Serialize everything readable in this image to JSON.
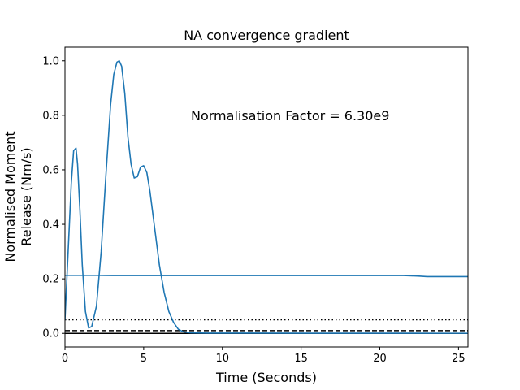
{
  "chart_data": {
    "type": "line",
    "title": "NA convergence gradient",
    "xlabel": "Time (Seconds)",
    "ylabel_line1": "Normalised Moment",
    "ylabel_line2": "Release (Nm/s)",
    "xlim": [
      0,
      25.6
    ],
    "ylim": [
      -0.05,
      1.05
    ],
    "xticks": [
      0,
      5,
      10,
      15,
      20,
      25
    ],
    "yticks": [
      0.0,
      0.2,
      0.4,
      0.6,
      0.8,
      1.0
    ],
    "ytick_labels": [
      "0.0",
      "0.2",
      "0.4",
      "0.6",
      "0.8",
      "1.0"
    ],
    "grid": false,
    "annotation": {
      "text": "Normalisation Factor = 6.30e9",
      "x": 8.0,
      "y": 0.8
    },
    "line_color": "#1f77b4",
    "series": [
      {
        "values_x": [
          0,
          0.2,
          0.4,
          0.55,
          0.7,
          0.8,
          0.95,
          1.1,
          1.3,
          1.5,
          1.7,
          2.0,
          2.3,
          2.6,
          2.9,
          3.1,
          3.3,
          3.45,
          3.6,
          3.8,
          4.0,
          4.2,
          4.4,
          4.6,
          4.8,
          5.0,
          5.2,
          5.4,
          5.6,
          5.8,
          6.0,
          6.3,
          6.6,
          6.9,
          7.2,
          7.5,
          7.8,
          8.0,
          9.0,
          12.0,
          16.0,
          20.0,
          24.0,
          25.6
        ],
        "values_y": [
          0.05,
          0.3,
          0.55,
          0.67,
          0.68,
          0.62,
          0.45,
          0.25,
          0.08,
          0.02,
          0.025,
          0.1,
          0.3,
          0.58,
          0.84,
          0.95,
          0.995,
          1.0,
          0.98,
          0.88,
          0.72,
          0.62,
          0.57,
          0.575,
          0.61,
          0.615,
          0.59,
          0.52,
          0.43,
          0.34,
          0.25,
          0.15,
          0.08,
          0.04,
          0.015,
          0.006,
          0.003,
          0.002,
          0.001,
          0.001,
          0.0005,
          0.0005,
          0.0003,
          0.0003
        ]
      },
      {
        "values_x": [
          0,
          1,
          2,
          3,
          5,
          10,
          15,
          20,
          21.5,
          22,
          22.5,
          23,
          24,
          25.6
        ],
        "values_y": [
          0.213,
          0.213,
          0.213,
          0.212,
          0.212,
          0.212,
          0.212,
          0.212,
          0.212,
          0.211,
          0.21,
          0.208,
          0.208,
          0.208
        ]
      }
    ],
    "reference_lines": [
      {
        "y": 0.05,
        "style": "dotted"
      },
      {
        "y": 0.01,
        "style": "dashed"
      },
      {
        "y": 0.0,
        "style": "solid"
      }
    ]
  }
}
